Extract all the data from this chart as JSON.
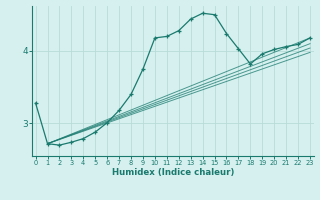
{
  "xlabel": "Humidex (Indice chaleur)",
  "bg_color": "#d6f0ef",
  "line_color": "#1a7a6e",
  "grid_color": "#b8dcd9",
  "x_ticks": [
    0,
    1,
    2,
    3,
    4,
    5,
    6,
    7,
    8,
    9,
    10,
    11,
    12,
    13,
    14,
    15,
    16,
    17,
    18,
    19,
    20,
    21,
    22,
    23
  ],
  "y_ticks": [
    3,
    4
  ],
  "ylim": [
    2.55,
    4.62
  ],
  "xlim": [
    -0.3,
    23.3
  ],
  "series": [
    [
      0,
      3.28
    ],
    [
      1,
      2.72
    ],
    [
      2,
      2.7
    ],
    [
      3,
      2.74
    ],
    [
      4,
      2.79
    ],
    [
      5,
      2.88
    ],
    [
      6,
      3.01
    ],
    [
      7,
      3.18
    ],
    [
      8,
      3.4
    ],
    [
      9,
      3.75
    ],
    [
      10,
      4.18
    ],
    [
      11,
      4.2
    ],
    [
      12,
      4.28
    ],
    [
      13,
      4.44
    ],
    [
      14,
      4.52
    ],
    [
      15,
      4.5
    ],
    [
      16,
      4.24
    ],
    [
      17,
      4.03
    ],
    [
      18,
      3.82
    ],
    [
      19,
      3.96
    ],
    [
      20,
      4.02
    ],
    [
      21,
      4.06
    ],
    [
      22,
      4.09
    ],
    [
      23,
      4.18
    ]
  ],
  "linear_series": [
    [
      [
        1,
        2.72
      ],
      [
        23,
        4.18
      ]
    ],
    [
      [
        1,
        2.72
      ],
      [
        23,
        4.1
      ]
    ],
    [
      [
        1,
        2.72
      ],
      [
        23,
        4.04
      ]
    ],
    [
      [
        1,
        2.72
      ],
      [
        23,
        3.98
      ]
    ]
  ]
}
